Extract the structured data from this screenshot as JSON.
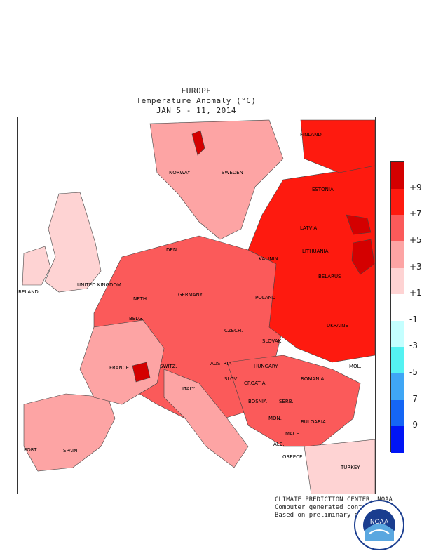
{
  "header": {
    "region": "EUROPE",
    "variable": "Temperature Anomaly (°C)",
    "period": "JAN 5 - 11, 2014"
  },
  "legend": {
    "colors": [
      "#d40000",
      "#fe1a0f",
      "#fb5a5a",
      "#fda4a4",
      "#fed3d3",
      "#ffffff",
      "#c4ffff",
      "#54f2f2",
      "#3fa6f5",
      "#1566f5",
      "#0015f5"
    ],
    "labels": [
      "+9",
      "+7",
      "+5",
      "+3",
      "+1",
      "-1",
      "-3",
      "-5",
      "-7",
      "-9"
    ]
  },
  "countries": [
    "FINLAND",
    "NORWAY",
    "SWEDEN",
    "ESTONIA",
    "LATVIA",
    "DEN.",
    "LITHUANIA",
    "KALININ.",
    "UNITED KINGDOM",
    "BELARUS",
    "IRELAND",
    "NETH.",
    "GERMANY",
    "POLAND",
    "BELG.",
    "CZECH.",
    "UKRAINE",
    "SLOVAK.",
    "FRANCE",
    "SWITZ.",
    "AUSTRIA",
    "HUNGARY",
    "MOL.",
    "SLOV.",
    "CROATIA",
    "ROMANIA",
    "ITALY",
    "BOSNIA",
    "SERB.",
    "MON.",
    "BULGARIA",
    "MACE.",
    "PORT.",
    "SPAIN",
    "ALB.",
    "GREECE",
    "TURKEY"
  ],
  "credit": {
    "line1": "CLIMATE PREDICTION CENTER, NOAA",
    "line2": "Computer generated contours",
    "line3": "Based on preliminary data"
  },
  "logo": {
    "text": "NOAA"
  }
}
